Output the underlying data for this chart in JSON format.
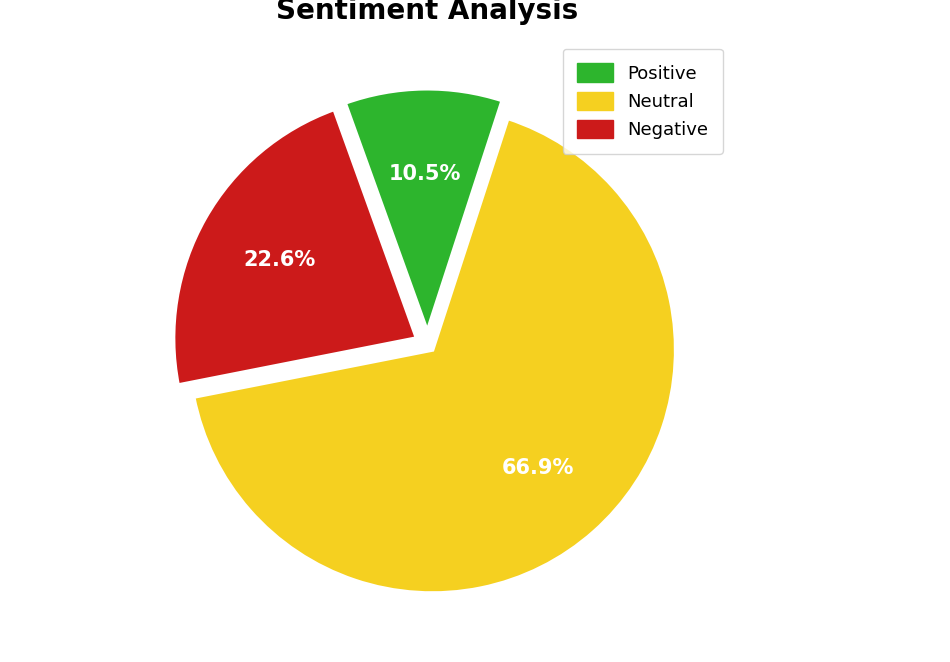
{
  "title": "Sentiment Analysis",
  "title_fontsize": 20,
  "title_fontweight": "bold",
  "slices": [
    66.9,
    22.6,
    10.5
  ],
  "labels": [
    "Neutral",
    "Negative",
    "Positive"
  ],
  "legend_labels": [
    "Positive",
    "Neutral",
    "Negative"
  ],
  "legend_colors": [
    "#2db52d",
    "#f5d020",
    "#cc1a1a"
  ],
  "colors": [
    "#f5d020",
    "#cc1a1a",
    "#2db52d"
  ],
  "autopct_fontsize": 15,
  "autopct_fontweight": "bold",
  "autopct_color": "white",
  "startangle": 72,
  "explode": [
    0.03,
    0.05,
    0.05
  ],
  "legend_fontsize": 13,
  "legend_loc": "upper right",
  "edge_color": "white",
  "edge_linewidth": 3.0,
  "pctdistance": 0.65
}
